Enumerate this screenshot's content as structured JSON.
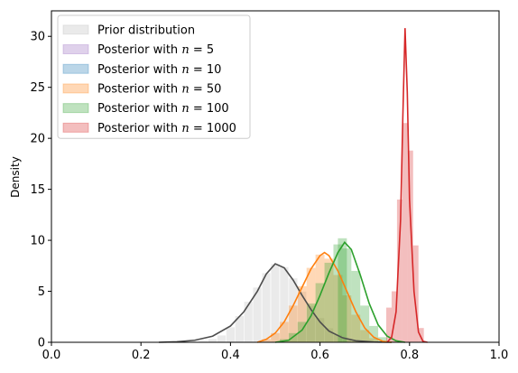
{
  "chart_data": {
    "type": "area",
    "title": "",
    "xlabel": "",
    "ylabel": "Density",
    "xlim": [
      0.0,
      1.0
    ],
    "ylim": [
      0,
      32.5
    ],
    "xticks": [
      0.0,
      0.2,
      0.4,
      0.6,
      0.8,
      1.0
    ],
    "xtick_labels": [
      "0.0",
      "0.2",
      "0.4",
      "0.6",
      "0.8",
      "1.0"
    ],
    "yticks": [
      0,
      5,
      10,
      15,
      20,
      25,
      30
    ],
    "ytick_labels": [
      "0",
      "5",
      "10",
      "15",
      "20",
      "25",
      "30"
    ],
    "grid": false,
    "legend_position": "top-left",
    "series": [
      {
        "name": "Prior distribution",
        "label_prefix": "Prior distribution",
        "label_math": "",
        "color": "#bbbbbb",
        "line_color": "#4d4d4d",
        "hist_bins": [
          [
            0.34,
            0.1
          ],
          [
            0.36,
            0.35
          ],
          [
            0.38,
            0.7
          ],
          [
            0.4,
            1.5
          ],
          [
            0.42,
            2.6
          ],
          [
            0.44,
            4.0
          ],
          [
            0.46,
            5.4
          ],
          [
            0.48,
            6.8
          ],
          [
            0.5,
            7.7
          ],
          [
            0.52,
            7.4
          ],
          [
            0.54,
            6.3
          ],
          [
            0.56,
            5.0
          ],
          [
            0.58,
            3.6
          ],
          [
            0.6,
            2.4
          ],
          [
            0.62,
            1.4
          ],
          [
            0.64,
            0.75
          ],
          [
            0.66,
            0.35
          ],
          [
            0.68,
            0.12
          ]
        ],
        "hist_width": 0.02,
        "kde": [
          [
            0.24,
            0.0
          ],
          [
            0.28,
            0.05
          ],
          [
            0.32,
            0.2
          ],
          [
            0.36,
            0.6
          ],
          [
            0.4,
            1.6
          ],
          [
            0.43,
            3.0
          ],
          [
            0.46,
            5.0
          ],
          [
            0.48,
            6.7
          ],
          [
            0.5,
            7.7
          ],
          [
            0.52,
            7.3
          ],
          [
            0.54,
            6.1
          ],
          [
            0.56,
            4.6
          ],
          [
            0.58,
            3.2
          ],
          [
            0.6,
            2.0
          ],
          [
            0.62,
            1.1
          ],
          [
            0.65,
            0.45
          ],
          [
            0.68,
            0.15
          ],
          [
            0.72,
            0.03
          ],
          [
            0.76,
            0.0
          ]
        ]
      },
      {
        "name": "Posterior with n = 5",
        "label_prefix": "Posterior with ",
        "label_math": "n = 5",
        "color": "#9467bd",
        "line_color": "#9467bd",
        "hist_bins": [],
        "hist_width": 0.02,
        "kde": []
      },
      {
        "name": "Posterior with n = 10",
        "label_prefix": "Posterior with ",
        "label_math": "n = 10",
        "color": "#1f77b4",
        "line_color": "#1f77b4",
        "hist_bins": [],
        "hist_width": 0.02,
        "kde": []
      },
      {
        "name": "Posterior with n = 50",
        "label_prefix": "Posterior with ",
        "label_math": "n = 50",
        "color": "#ff7f0e",
        "line_color": "#ff7f0e",
        "hist_bins": [
          [
            0.48,
            0.3
          ],
          [
            0.5,
            0.9
          ],
          [
            0.52,
            2.0
          ],
          [
            0.54,
            3.6
          ],
          [
            0.56,
            5.5
          ],
          [
            0.58,
            7.3
          ],
          [
            0.6,
            8.6
          ],
          [
            0.62,
            8.2
          ],
          [
            0.64,
            6.6
          ],
          [
            0.66,
            4.6
          ],
          [
            0.68,
            2.7
          ],
          [
            0.7,
            1.2
          ],
          [
            0.72,
            0.4
          ]
        ],
        "hist_width": 0.02,
        "kde": [
          [
            0.46,
            0.0
          ],
          [
            0.48,
            0.3
          ],
          [
            0.5,
            0.9
          ],
          [
            0.52,
            2.0
          ],
          [
            0.54,
            3.6
          ],
          [
            0.56,
            5.4
          ],
          [
            0.58,
            7.2
          ],
          [
            0.6,
            8.5
          ],
          [
            0.61,
            8.8
          ],
          [
            0.62,
            8.5
          ],
          [
            0.64,
            7.0
          ],
          [
            0.66,
            5.0
          ],
          [
            0.68,
            3.0
          ],
          [
            0.7,
            1.4
          ],
          [
            0.72,
            0.5
          ],
          [
            0.74,
            0.1
          ],
          [
            0.76,
            0.0
          ]
        ]
      },
      {
        "name": "Posterior with n = 100",
        "label_prefix": "Posterior with ",
        "label_math": "n = 100",
        "color": "#2ca02c",
        "line_color": "#2ca02c",
        "hist_bins": [
          [
            0.52,
            0.3
          ],
          [
            0.54,
            0.9
          ],
          [
            0.56,
            2.0
          ],
          [
            0.58,
            3.8
          ],
          [
            0.6,
            5.8
          ],
          [
            0.62,
            7.8
          ],
          [
            0.64,
            9.6
          ],
          [
            0.65,
            10.2
          ],
          [
            0.66,
            9.2
          ],
          [
            0.68,
            7.0
          ],
          [
            0.7,
            3.6
          ],
          [
            0.72,
            1.6
          ],
          [
            0.74,
            0.5
          ],
          [
            0.76,
            0.1
          ]
        ],
        "hist_width": 0.02,
        "kde": [
          [
            0.5,
            0.0
          ],
          [
            0.53,
            0.2
          ],
          [
            0.56,
            1.2
          ],
          [
            0.58,
            2.6
          ],
          [
            0.6,
            4.6
          ],
          [
            0.62,
            6.8
          ],
          [
            0.64,
            8.8
          ],
          [
            0.655,
            9.8
          ],
          [
            0.67,
            9.1
          ],
          [
            0.69,
            6.6
          ],
          [
            0.71,
            3.8
          ],
          [
            0.73,
            1.7
          ],
          [
            0.75,
            0.6
          ],
          [
            0.77,
            0.15
          ],
          [
            0.79,
            0.0
          ]
        ]
      },
      {
        "name": "Posterior with n = 1000",
        "label_prefix": "Posterior with ",
        "label_math": "n = 1000",
        "color": "#d62728",
        "line_color": "#d62728",
        "hist_bins": [
          [
            0.754,
            3.4
          ],
          [
            0.766,
            5.0
          ],
          [
            0.778,
            14.0
          ],
          [
            0.79,
            21.5
          ],
          [
            0.802,
            18.8
          ],
          [
            0.814,
            9.5
          ],
          [
            0.826,
            1.4
          ]
        ],
        "hist_width": 0.012,
        "kde": [
          [
            0.75,
            0.0
          ],
          [
            0.76,
            0.5
          ],
          [
            0.77,
            3.0
          ],
          [
            0.78,
            12.0
          ],
          [
            0.785,
            22.0
          ],
          [
            0.79,
            30.8
          ],
          [
            0.795,
            24.5
          ],
          [
            0.8,
            14.0
          ],
          [
            0.81,
            5.0
          ],
          [
            0.82,
            1.0
          ],
          [
            0.83,
            0.1
          ],
          [
            0.84,
            0.0
          ]
        ]
      }
    ]
  }
}
